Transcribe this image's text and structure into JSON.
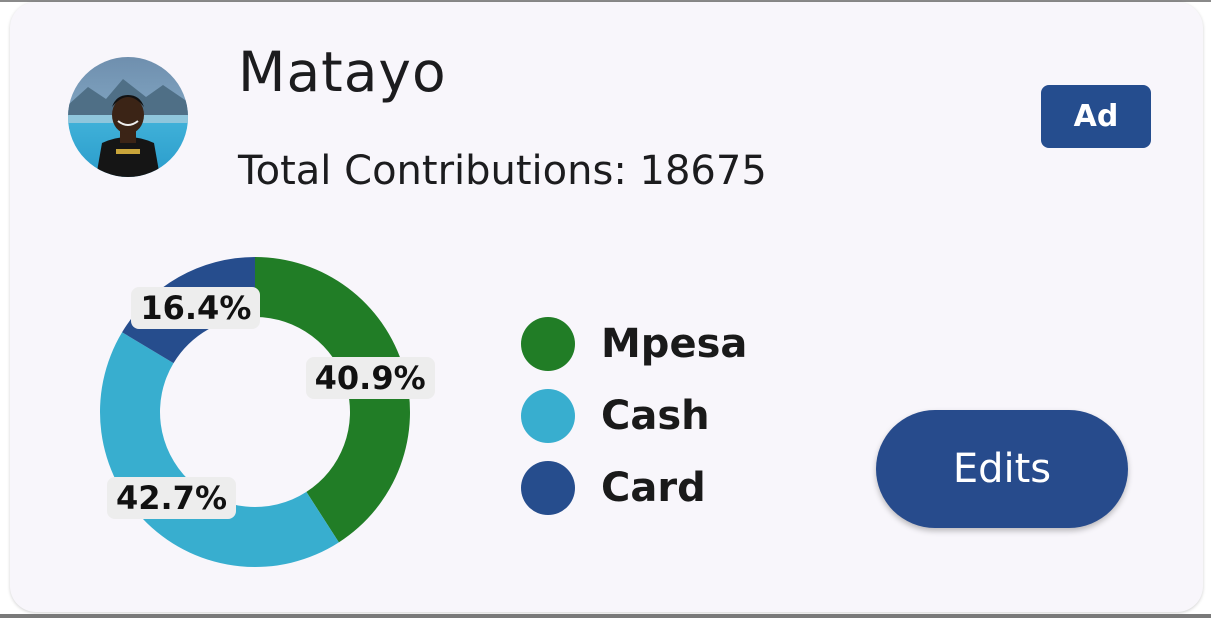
{
  "profile": {
    "name": "Matayo",
    "total_contributions": "Total Contributions: 18675",
    "ad_badge": "Ad"
  },
  "actions": {
    "edits_label": "Edits"
  },
  "chart_data": {
    "type": "pie",
    "style": "donut",
    "categories": [
      "Mpesa",
      "Cash",
      "Card"
    ],
    "values": [
      40.9,
      42.7,
      16.4
    ],
    "labels": [
      "40.9%",
      "42.7%",
      "16.4%"
    ],
    "colors": [
      "#217d26",
      "#38aecf",
      "#264d8d"
    ],
    "legend_position": "right"
  }
}
